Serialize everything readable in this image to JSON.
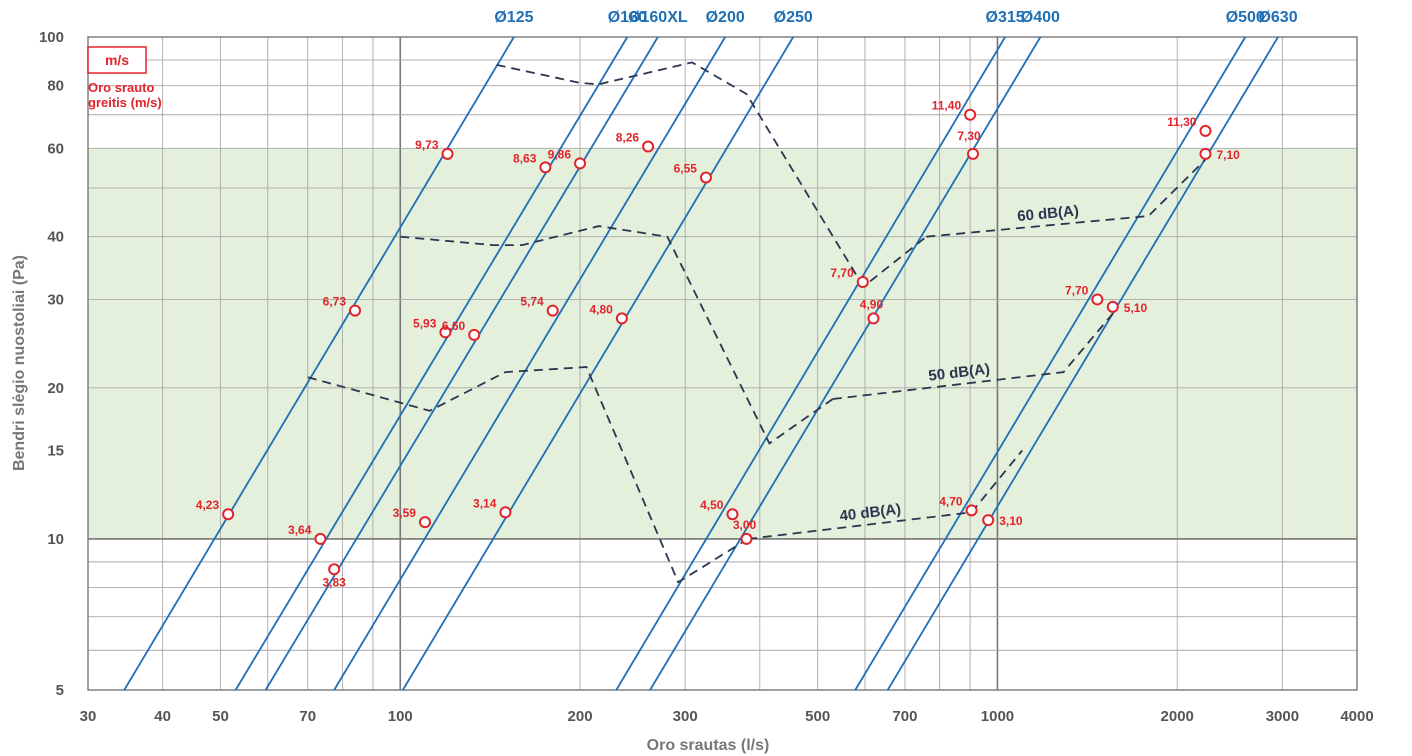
{
  "chart_data": {
    "type": "line",
    "title": "",
    "xlabel": "Oro srautas (l/s)",
    "ylabel": "Bendri slėgio nuostoliai (Pa)",
    "x_scale": "log",
    "y_scale": "log",
    "xlim": [
      30,
      4000
    ],
    "ylim": [
      5,
      100
    ],
    "x_tick_labels": [
      {
        "value": 30,
        "label": "30"
      },
      {
        "value": 40,
        "label": "40"
      },
      {
        "value": 50,
        "label": "50"
      },
      {
        "value": 70,
        "label": "70"
      },
      {
        "value": 100,
        "label": "100"
      },
      {
        "value": 200,
        "label": "200"
      },
      {
        "value": 300,
        "label": "300"
      },
      {
        "value": 500,
        "label": "500"
      },
      {
        "value": 700,
        "label": "700"
      },
      {
        "value": 1000,
        "label": "1000"
      },
      {
        "value": 2000,
        "label": "2000"
      },
      {
        "value": 3000,
        "label": "3000"
      },
      {
        "value": 4000,
        "label": "4000"
      }
    ],
    "y_tick_labels": [
      {
        "value": 5,
        "label": "5"
      },
      {
        "value": 10,
        "label": "10"
      },
      {
        "value": 15,
        "label": "15"
      },
      {
        "value": 20,
        "label": "20"
      },
      {
        "value": 30,
        "label": "30"
      },
      {
        "value": 40,
        "label": "40"
      },
      {
        "value": 60,
        "label": "60"
      },
      {
        "value": 80,
        "label": "80"
      },
      {
        "value": 100,
        "label": "100"
      }
    ],
    "grid": true,
    "recommended_zone": {
      "y_min": 10,
      "y_max": 60,
      "color": "#e4efdc"
    },
    "legend": {
      "unit": "m/s",
      "title_line1": "Oro srauto",
      "title_line2": "greitis (m/s)",
      "position": "top-left"
    },
    "duct_lines": [
      {
        "label": "Ø125",
        "points": [
          [
            34.5,
            5
          ],
          [
            155,
            100
          ]
        ]
      },
      {
        "label": "Ø160",
        "points": [
          [
            53,
            5
          ],
          [
            240,
            100
          ]
        ]
      },
      {
        "label": "Ø160XL",
        "points": [
          [
            59.5,
            5
          ],
          [
            270,
            100
          ]
        ]
      },
      {
        "label": "Ø200",
        "points": [
          [
            77.5,
            5
          ],
          [
            350,
            100
          ]
        ]
      },
      {
        "label": "Ø250",
        "points": [
          [
            101,
            5
          ],
          [
            455,
            100
          ]
        ]
      },
      {
        "label": "Ø315",
        "points": [
          [
            230,
            5
          ],
          [
            1030,
            100
          ]
        ]
      },
      {
        "label": "Ø400",
        "points": [
          [
            262,
            5
          ],
          [
            1180,
            100
          ]
        ]
      },
      {
        "label": "Ø500",
        "points": [
          [
            578,
            5
          ],
          [
            2600,
            100
          ]
        ]
      },
      {
        "label": "Ø630",
        "points": [
          [
            655,
            5
          ],
          [
            2950,
            100
          ]
        ]
      }
    ],
    "noise_lines": [
      {
        "label": "",
        "points": [
          [
            145,
            88
          ],
          [
            200,
            81
          ],
          [
            215,
            80.5
          ],
          [
            308,
            89
          ],
          [
            380,
            77
          ],
          [
            590,
            32.5
          ],
          [
            600,
            32
          ],
          [
            760,
            40
          ]
        ]
      },
      {
        "label": "60 dB(A)",
        "points": [
          [
            760,
            40
          ],
          [
            1790,
            44
          ],
          [
            2230,
            57
          ]
        ]
      },
      {
        "label": "",
        "points": [
          [
            100,
            40
          ],
          [
            143,
            38.5
          ],
          [
            160,
            38.5
          ],
          [
            215,
            42
          ],
          [
            280,
            40
          ],
          [
            415,
            15.5
          ],
          [
            530,
            19
          ]
        ]
      },
      {
        "label": "50 dB(A)",
        "points": [
          [
            530,
            19
          ],
          [
            1290,
            21.5
          ],
          [
            1575,
            28.5
          ]
        ]
      },
      {
        "label": "",
        "points": [
          [
            70,
            21
          ],
          [
            112,
            18
          ],
          [
            150,
            21.5
          ],
          [
            205,
            22
          ],
          [
            292,
            8.2
          ],
          [
            382,
            10
          ]
        ]
      },
      {
        "label": "40 dB(A)",
        "points": [
          [
            382,
            10
          ],
          [
            905,
            11.3
          ],
          [
            1100,
            15
          ]
        ]
      }
    ],
    "points": [
      {
        "x": 51.5,
        "y": 11.2,
        "label": "4,23"
      },
      {
        "x": 73.5,
        "y": 10,
        "label": "3,64"
      },
      {
        "x": 77.5,
        "y": 8.7,
        "label": "3,83"
      },
      {
        "x": 84,
        "y": 28.5,
        "label": "6,73"
      },
      {
        "x": 110,
        "y": 10.8,
        "label": "3,59"
      },
      {
        "x": 119,
        "y": 25.8,
        "label": "5,93"
      },
      {
        "x": 120,
        "y": 58.5,
        "label": "9,73"
      },
      {
        "x": 133,
        "y": 25.5,
        "label": "6,60"
      },
      {
        "x": 150,
        "y": 11.3,
        "label": "3,14"
      },
      {
        "x": 175,
        "y": 55,
        "label": "8,63"
      },
      {
        "x": 180,
        "y": 28.5,
        "label": "5,74"
      },
      {
        "x": 200,
        "y": 56,
        "label": "9,86"
      },
      {
        "x": 235,
        "y": 27.5,
        "label": "4,80"
      },
      {
        "x": 260,
        "y": 60.5,
        "label": "8,26"
      },
      {
        "x": 325,
        "y": 52.5,
        "label": "6,55"
      },
      {
        "x": 360,
        "y": 11.2,
        "label": "4,50"
      },
      {
        "x": 380,
        "y": 10,
        "label": "3,00"
      },
      {
        "x": 595,
        "y": 32.5,
        "label": "7,70"
      },
      {
        "x": 620,
        "y": 27.5,
        "label": "4,90"
      },
      {
        "x": 900,
        "y": 70,
        "label": "11,40"
      },
      {
        "x": 910,
        "y": 58.5,
        "label": "7,30"
      },
      {
        "x": 905,
        "y": 11.4,
        "label": "4,70"
      },
      {
        "x": 965,
        "y": 10.9,
        "label": "3,10"
      },
      {
        "x": 1470,
        "y": 30,
        "label": "7,70"
      },
      {
        "x": 1560,
        "y": 29,
        "label": "5,10"
      },
      {
        "x": 2230,
        "y": 65,
        "label": "11,30"
      },
      {
        "x": 2230,
        "y": 58.5,
        "label": "7,10"
      }
    ]
  }
}
